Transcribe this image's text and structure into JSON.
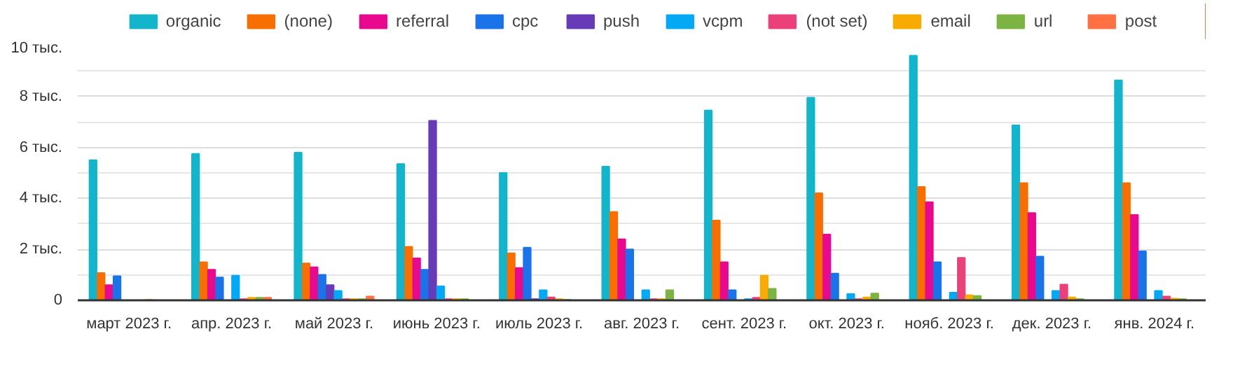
{
  "chart_data": {
    "type": "bar",
    "categories": [
      "март 2023 г.",
      "апр. 2023 г.",
      "май 2023 г.",
      "июнь 2023 г.",
      "июль 2023 г.",
      "авг. 2023 г.",
      "сент. 2023 г.",
      "окт. 2023 г.",
      "нояб. 2023 г.",
      "дек. 2023 г.",
      "янв. 2024 г."
    ],
    "series": [
      {
        "name": "organic",
        "color": "#12b5cb",
        "values": [
          5.5,
          5.75,
          5.8,
          5.35,
          5.0,
          5.25,
          7.45,
          7.95,
          9.6,
          6.87,
          8.63
        ]
      },
      {
        "name": "(none)",
        "color": "#f96e00",
        "values": [
          1.07,
          1.5,
          1.45,
          2.1,
          1.85,
          3.47,
          3.13,
          4.2,
          4.45,
          4.6,
          4.6
        ]
      },
      {
        "name": "referral",
        "color": "#e8098f",
        "values": [
          0.6,
          1.2,
          1.3,
          1.65,
          1.27,
          2.4,
          1.5,
          2.58,
          3.85,
          3.43,
          3.35
        ]
      },
      {
        "name": "cpc",
        "color": "#1a73e8",
        "values": [
          0.95,
          0.9,
          1.0,
          1.2,
          2.07,
          2.0,
          0.4,
          1.05,
          1.5,
          1.72,
          1.92
        ]
      },
      {
        "name": "push",
        "color": "#673ab7",
        "values": [
          0,
          0,
          0.6,
          7.05,
          0.05,
          null,
          0,
          0,
          0,
          0,
          0
        ]
      },
      {
        "name": "vcpm",
        "color": "#03a9f4",
        "values": [
          0,
          0.97,
          0.37,
          0.55,
          0.4,
          0.4,
          0.05,
          0.25,
          0.3,
          0.37,
          0.37
        ]
      },
      {
        "name": "(not set)",
        "color": "#ec407a",
        "values": [
          0,
          0.05,
          0.05,
          0.05,
          0.12,
          0.05,
          0.1,
          0.05,
          1.67,
          0.62,
          0.15
        ]
      },
      {
        "name": "email",
        "color": "#f9ab00",
        "values": [
          0.02,
          0.1,
          0.05,
          0.05,
          0.05,
          0.05,
          0.97,
          0.12,
          0.2,
          0.12,
          0.07
        ]
      },
      {
        "name": "url",
        "color": "#7cb342",
        "values": [
          0,
          0.1,
          0.05,
          0.05,
          0.02,
          0.4,
          0.45,
          0.27,
          0.17,
          0.05,
          0.05
        ]
      },
      {
        "name": "post",
        "color": "#ff7043",
        "values": [
          0,
          0.1,
          0.15,
          0,
          0,
          0,
          0,
          0,
          0,
          0,
          0
        ]
      }
    ],
    "ylim": [
      0,
      10
    ],
    "yticks": [
      0,
      {
        "value": 2,
        "label": "2 тыс."
      },
      {
        "value": 4,
        "label": "4 тыс."
      },
      {
        "value": 6,
        "label": "6 тыс."
      },
      {
        "value": 8,
        "label": "8 тыс."
      },
      {
        "value": 10,
        "label": "10 тыс."
      }
    ],
    "grid": "y",
    "legend": "top"
  }
}
